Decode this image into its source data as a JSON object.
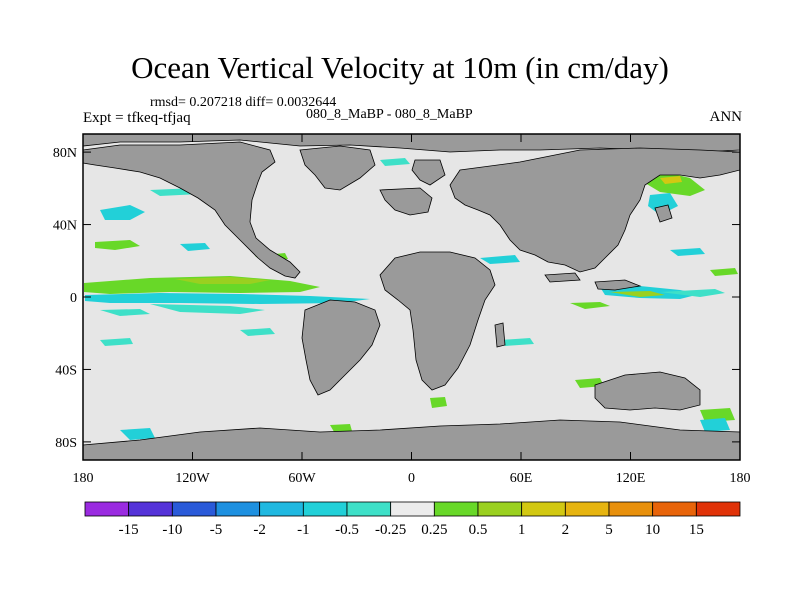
{
  "title": "Ocean Vertical Velocity at 10m (in cm/day)",
  "stats_line": "rmsd= 0.207218 diff= 0.0032644",
  "experiment": "Expt = tfkeq-tfjaq",
  "case_label": "080_8_MaBP - 080_8_MaBP",
  "season": "ANN",
  "chart_data": {
    "type": "heatmap",
    "title": "Ocean Vertical Velocity at 10m (in cm/day)",
    "xlabel": "",
    "ylabel": "",
    "x_ticks": [
      "180",
      "120W",
      "60W",
      "0",
      "60E",
      "120E",
      "180"
    ],
    "y_ticks": [
      "80N",
      "40N",
      "0",
      "40S",
      "80S"
    ],
    "xlim": [
      -180,
      180
    ],
    "ylim": [
      -90,
      90
    ],
    "colorbar": {
      "labels": [
        "-15",
        "-10",
        "-5",
        "-2",
        "-1",
        "-0.5",
        "-0.25",
        "0.25",
        "0.5",
        "1",
        "2",
        "5",
        "10",
        "15"
      ],
      "colors": [
        "#9a2be0",
        "#5533d8",
        "#2a5ad9",
        "#1e90e0",
        "#20b8e0",
        "#22d0d8",
        "#3ee0c8",
        "#ececec",
        "#68d828",
        "#9ad020",
        "#d2c812",
        "#e6b410",
        "#e8900c",
        "#e8640a",
        "#e03208"
      ]
    },
    "land_color": "#9a9a9a",
    "ocean_color": "#e6e6e6",
    "grid": false,
    "colorbar_placement": "bottom"
  }
}
